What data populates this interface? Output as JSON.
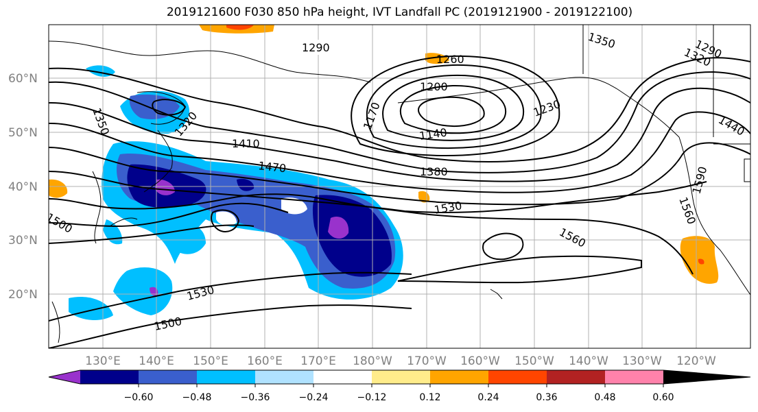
{
  "title": "2019121600 F030 850 hPa height, IVT Landfall PC (2019121900 - 2019122100)",
  "lat_labels": [
    "60°N",
    "50°N",
    "40°N",
    "30°N",
    "20°N"
  ],
  "lon_labels": [
    "130°E",
    "140°E",
    "150°E",
    "160°E",
    "170°E",
    "180°W",
    "170°W",
    "160°W",
    "150°W",
    "140°W",
    "130°W",
    "120°W"
  ],
  "contour_labels": [
    "1290",
    "1350",
    "1320",
    "1290",
    "1260",
    "1200",
    "1170",
    "1140",
    "1230",
    "1350",
    "1320",
    "1410",
    "1470",
    "1380",
    "1440",
    "1530",
    "1590",
    "1560",
    "1500",
    "1530",
    "1500",
    "1560"
  ],
  "colorbar": {
    "colors": [
      "#9932cc",
      "#00008b",
      "#3a5fcd",
      "#00bfff",
      "#b0e2ff",
      "#ffffff",
      "#ffec8b",
      "#ffa500",
      "#ff4500",
      "#b22222",
      "#ff82ab"
    ],
    "tick_labels": [
      "−0.60",
      "−0.48",
      "−0.36",
      "−0.24",
      "−0.12",
      "0.12",
      "0.24",
      "0.36",
      "0.48",
      "0.60"
    ]
  }
}
